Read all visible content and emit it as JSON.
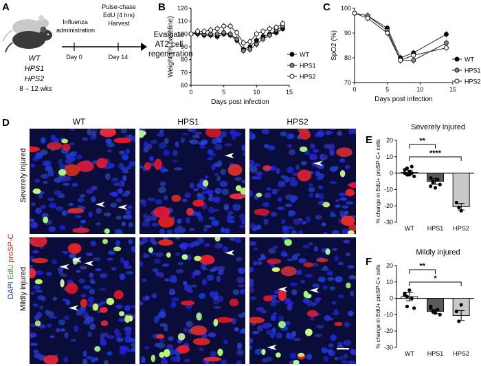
{
  "panels": {
    "A": "A",
    "B": "B",
    "C": "C",
    "D": "D",
    "E": "E",
    "F": "F"
  },
  "panelA": {
    "genotypes": [
      "WT",
      "HPS1",
      "HPS2"
    ],
    "age": "8 – 12 wks",
    "step1": "Influenza\nadministration",
    "step2": "Pulse-chase\nEdU (4 hrs)\nHarvest",
    "day0": "Day 0",
    "day14": "Day 14",
    "outcome": "Evaluate\nAT2 cell\nregeneration"
  },
  "panelD": {
    "columns": [
      "WT",
      "HPS1",
      "HPS2"
    ],
    "rows": [
      "Severely injured",
      "Mildly injured"
    ],
    "stain_dapi": "DAPI",
    "stain_edu": "EdU",
    "stain_prosp": "proSP-C"
  },
  "chart_data": [
    {
      "id": "B",
      "type": "line",
      "xlabel": "Days post infection",
      "ylabel": "Weight (% baseline)",
      "xlim": [
        0,
        15
      ],
      "ylim": [
        60,
        120
      ],
      "xticks": [
        0,
        5,
        10,
        15
      ],
      "yticks": [
        60,
        70,
        80,
        90,
        100,
        110,
        120
      ],
      "legend": "right",
      "series": [
        {
          "name": "WT",
          "x": [
            0,
            1,
            2,
            3,
            4,
            5,
            6,
            7,
            8,
            9,
            10,
            11,
            12,
            13,
            14
          ],
          "y": [
            100,
            100,
            99,
            99,
            98,
            100,
            99,
            95,
            88,
            90,
            95,
            98,
            100,
            101,
            104
          ]
        },
        {
          "name": "HPS1",
          "x": [
            0,
            1,
            2,
            3,
            4,
            5,
            6,
            7,
            8,
            9,
            10,
            11,
            12,
            13,
            14
          ],
          "y": [
            100,
            101,
            100,
            100,
            100,
            101,
            100,
            96,
            87,
            88,
            92,
            96,
            99,
            103,
            106
          ]
        },
        {
          "name": "HPS2",
          "x": [
            0,
            1,
            2,
            3,
            4,
            5,
            6,
            7,
            8,
            9,
            10,
            11,
            12,
            13,
            14
          ],
          "y": [
            100,
            102,
            102,
            103,
            104,
            106,
            106,
            101,
            93,
            94,
            100,
            102,
            104,
            105,
            108
          ]
        }
      ]
    },
    {
      "id": "C",
      "type": "line",
      "xlabel": "Days post infection",
      "ylabel": "SpO2 (%)",
      "xlim": [
        0,
        15
      ],
      "ylim": [
        70,
        100
      ],
      "xticks": [
        0,
        5,
        10,
        15
      ],
      "yticks": [
        70,
        80,
        90,
        100
      ],
      "legend": "right",
      "series": [
        {
          "name": "WT",
          "x": [
            0,
            2,
            5,
            7,
            9,
            14
          ],
          "y": [
            98,
            97,
            92,
            80,
            82,
            89.5
          ]
        },
        {
          "name": "HPS1",
          "x": [
            0,
            2,
            5,
            7,
            9,
            14
          ],
          "y": [
            98,
            97,
            91,
            79,
            79,
            86
          ]
        },
        {
          "name": "HPS2",
          "x": [
            0,
            2,
            5,
            7,
            9,
            14
          ],
          "y": [
            98,
            96,
            90,
            79,
            81,
            84
          ]
        }
      ]
    },
    {
      "id": "E",
      "type": "bar",
      "title": "Severely injured",
      "ylabel": "% change in EdU+ proSP-C+ cells",
      "categories": [
        "WT",
        "HPS1",
        "HPS2"
      ],
      "values": [
        0.5,
        -5,
        -20.5
      ],
      "points": [
        [
          2,
          -1,
          1,
          4,
          -2,
          0,
          3,
          -1,
          0
        ],
        [
          -3,
          -6,
          -9,
          -4,
          -7,
          -8,
          -5
        ],
        [
          -18,
          -21,
          -23
        ]
      ],
      "errors": [
        1.3,
        1.8,
        2
      ],
      "ylim": [
        -30,
        20
      ],
      "yticks": [
        -30,
        -20,
        -10,
        0,
        10,
        20
      ],
      "significance": [
        {
          "from": "WT",
          "to": "HPS1",
          "label": "**"
        },
        {
          "from": "WT",
          "to": "HPS2",
          "label": "****"
        }
      ]
    },
    {
      "id": "F",
      "type": "bar",
      "title": "Mildly injured",
      "ylabel": "% change in EdU+ proSP-C+ cells",
      "categories": [
        "WT",
        "HPS1",
        "HPS2"
      ],
      "values": [
        1,
        -8,
        -10.5
      ],
      "points": [
        [
          3,
          -5,
          5,
          0,
          -6,
          2,
          1
        ],
        [
          -6,
          -8,
          -9,
          -7,
          -10,
          -5,
          -8
        ],
        [
          -8,
          -14,
          -4
        ]
      ],
      "errors": [
        2.5,
        1.3,
        3
      ],
      "ylim": [
        -30,
        20
      ],
      "yticks": [
        -30,
        -20,
        -10,
        0,
        10,
        20
      ],
      "significance": [
        {
          "from": "WT",
          "to": "HPS1",
          "label": "**"
        },
        {
          "from": "WT",
          "to": "HPS2",
          "label": "*"
        }
      ]
    }
  ]
}
